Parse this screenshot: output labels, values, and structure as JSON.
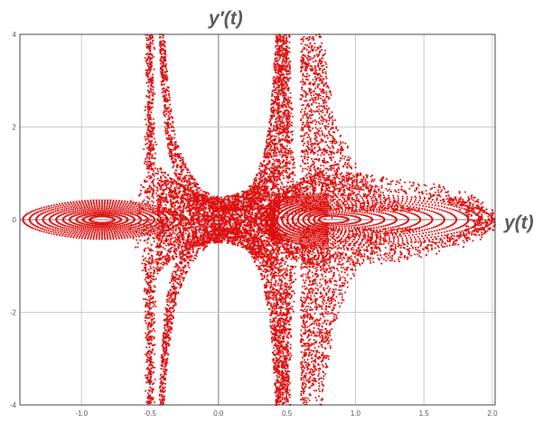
{
  "chart_data": {
    "type": "scatter",
    "title": "",
    "xlabel": "y(t)",
    "ylabel": "y′(t)",
    "xlim": [
      -1.45,
      2.02
    ],
    "ylim": [
      -4,
      4
    ],
    "x_ticks": [
      "-1.0",
      "-0.5",
      "0.0",
      "0.5",
      "1.0",
      "1.5",
      "2.0"
    ],
    "x_tick_values": [
      -1.0,
      -0.5,
      0.0,
      0.5,
      1.0,
      1.5,
      2.0
    ],
    "y_ticks": [
      "-4",
      "-2",
      "0",
      "2",
      "4"
    ],
    "y_tick_values": [
      -4,
      -2,
      0,
      2,
      4
    ],
    "grid": true,
    "marker_color": "#dd1111",
    "series": [
      {
        "description_kind": "Poincaré section points (red dots)",
        "regions": [
          {
            "kind": "closed-orbits",
            "center": [
              -0.85,
              0.0
            ],
            "x_range": [
              -1.35,
              -0.58
            ],
            "y_range": [
              -0.42,
              0.42
            ]
          },
          {
            "kind": "closed-orbits",
            "center": [
              0.8,
              0.0
            ],
            "x_range": [
              0.52,
              1.78
            ],
            "y_range": [
              -0.55,
              0.55
            ]
          },
          {
            "kind": "separatrix-spike",
            "center": [
              -0.5,
              0.0
            ],
            "y_range": [
              -4,
              4
            ]
          },
          {
            "kind": "separatrix-spike",
            "center": [
              0.48,
              0.0
            ],
            "y_range": [
              -4,
              4
            ]
          },
          {
            "kind": "chaotic-band",
            "x_range": [
              -0.45,
              0.42
            ],
            "y_range": [
              -1.2,
              1.2
            ]
          }
        ]
      }
    ]
  }
}
